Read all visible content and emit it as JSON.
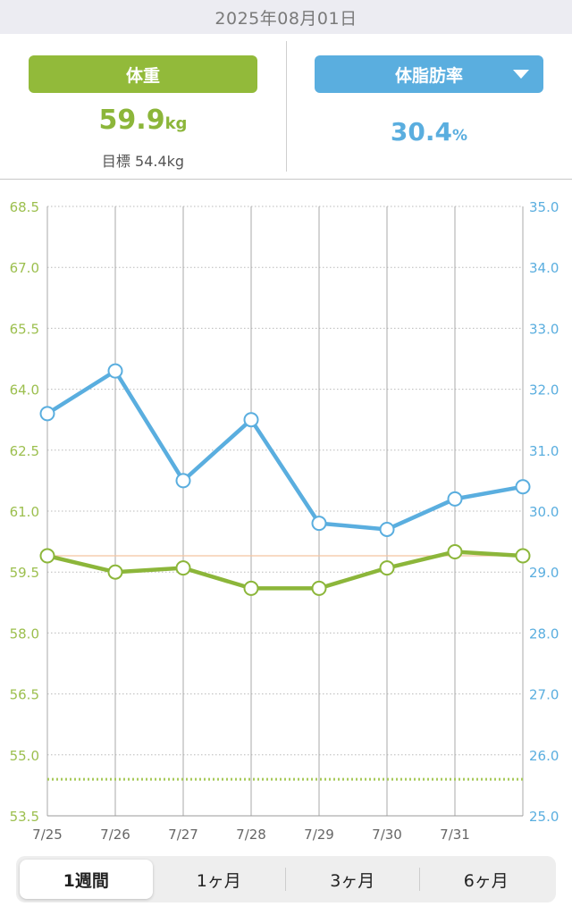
{
  "header": {
    "date": "2025年08月01日"
  },
  "summary": {
    "weight_label": "体重",
    "weight_value": "59.9",
    "weight_unit": "kg",
    "goal_label": "目標",
    "goal_value": "54.4kg",
    "fat_label": "体脂肪率",
    "fat_value": "30.4",
    "fat_unit": "%",
    "fat_dropdown_icon": "triangle-down-icon"
  },
  "colors": {
    "weight": "#8cb63a",
    "fat": "#5aaedf",
    "goal_line": "#a7c95a",
    "ref_line": "#f4c3a0"
  },
  "chart_data": {
    "type": "line",
    "categories": [
      "7/25",
      "7/26",
      "7/27",
      "7/28",
      "7/29",
      "7/30",
      "7/31",
      ""
    ],
    "series": [
      {
        "name": "体重",
        "axis": "left",
        "values": [
          59.9,
          59.5,
          59.6,
          59.1,
          59.1,
          59.6,
          60.0,
          59.9
        ]
      },
      {
        "name": "体脂肪率",
        "axis": "right",
        "values": [
          31.6,
          32.3,
          30.5,
          31.5,
          29.8,
          29.7,
          30.2,
          30.4
        ]
      }
    ],
    "y_left": {
      "min": 53.5,
      "max": 68.5,
      "ticks": [
        "68.5",
        "67.0",
        "65.5",
        "64.0",
        "62.5",
        "61.0",
        "59.5",
        "58.0",
        "56.5",
        "55.0",
        "53.5"
      ]
    },
    "y_right": {
      "min": 25.0,
      "max": 35.0,
      "ticks": [
        "35.0",
        "34.0",
        "33.0",
        "32.0",
        "31.0",
        "30.0",
        "29.0",
        "28.0",
        "27.0",
        "26.0",
        "25.0"
      ]
    },
    "goal_weight": 54.4,
    "current_weight_reference": 59.9,
    "grid": true
  },
  "periods": [
    {
      "label": "1週間",
      "active": true
    },
    {
      "label": "1ヶ月",
      "active": false
    },
    {
      "label": "3ヶ月",
      "active": false
    },
    {
      "label": "6ヶ月",
      "active": false
    }
  ]
}
